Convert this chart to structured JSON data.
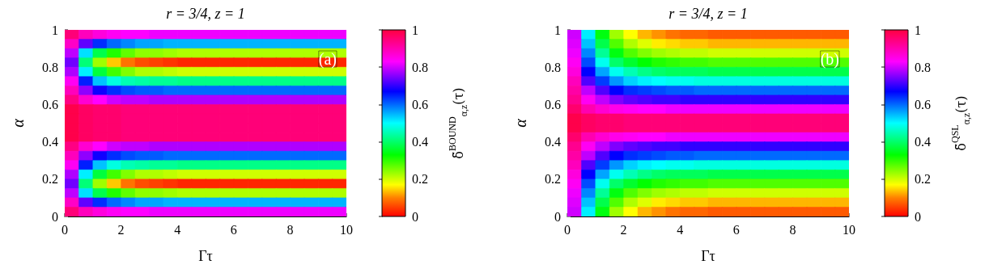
{
  "chart_data": [
    {
      "type": "heatmap",
      "title": "r = 3/4, z = 1",
      "xlabel": "Γτ",
      "ylabel": "α",
      "clabel": "δ̃$^{BOUND}$$_{α,z}$(τ)",
      "annotations": [
        "(a)"
      ],
      "x": [
        0.25,
        0.75,
        1.25,
        1.75,
        2.25,
        2.75,
        3.25,
        3.75,
        4.25,
        4.75,
        5.25,
        5.75,
        6.25,
        6.75,
        7.25,
        7.75,
        8.25,
        8.75,
        9.25,
        9.75
      ],
      "xlim": [
        0,
        10
      ],
      "xticks": [
        0,
        2,
        4,
        6,
        8,
        10
      ],
      "ylim": [
        0,
        1
      ],
      "yticks": [
        0,
        0.2,
        0.4,
        0.6,
        0.8,
        1
      ],
      "clim": [
        0,
        1
      ],
      "cticks": [
        0,
        0.2,
        0.4,
        0.6,
        0.8,
        1
      ],
      "cells": [
        [
          0.95,
          0.89,
          0.86,
          0.84,
          0.83,
          0.83,
          0.82,
          0.82,
          0.82,
          0.82,
          0.82,
          0.82,
          0.82,
          0.82,
          0.82,
          0.82,
          0.82,
          0.82,
          0.82,
          0.82
        ],
        [
          0.88,
          0.73,
          0.64,
          0.6,
          0.58,
          0.56,
          0.56,
          0.55,
          0.55,
          0.55,
          0.55,
          0.55,
          0.55,
          0.55,
          0.55,
          0.55,
          0.55,
          0.55,
          0.55,
          0.55
        ],
        [
          0.79,
          0.52,
          0.38,
          0.31,
          0.27,
          0.24,
          0.24,
          0.23,
          0.22,
          0.22,
          0.22,
          0.22,
          0.22,
          0.22,
          0.22,
          0.22,
          0.22,
          0.22,
          0.22,
          0.22
        ],
        [
          0.74,
          0.41,
          0.23,
          0.14,
          0.09,
          0.06,
          0.05,
          0.04,
          0.03,
          0.03,
          0.03,
          0.03,
          0.03,
          0.03,
          0.03,
          0.03,
          0.03,
          0.03,
          0.03,
          0.03
        ],
        [
          0.78,
          0.51,
          0.37,
          0.29,
          0.25,
          0.22,
          0.22,
          0.21,
          0.2,
          0.2,
          0.2,
          0.2,
          0.2,
          0.2,
          0.2,
          0.2,
          0.2,
          0.2,
          0.2,
          0.2
        ],
        [
          0.84,
          0.65,
          0.54,
          0.48,
          0.45,
          0.44,
          0.43,
          0.43,
          0.42,
          0.42,
          0.42,
          0.42,
          0.42,
          0.42,
          0.42,
          0.42,
          0.42,
          0.42,
          0.42,
          0.42
        ],
        [
          0.89,
          0.76,
          0.68,
          0.64,
          0.62,
          0.61,
          0.61,
          0.6,
          0.6,
          0.6,
          0.6,
          0.6,
          0.6,
          0.6,
          0.6,
          0.6,
          0.6,
          0.6,
          0.6,
          0.6
        ],
        [
          0.94,
          0.87,
          0.83,
          0.8,
          0.79,
          0.79,
          0.78,
          0.78,
          0.78,
          0.78,
          0.78,
          0.78,
          0.78,
          0.78,
          0.78,
          0.78,
          0.78,
          0.78,
          0.78,
          0.78
        ],
        [
          0.99,
          0.97,
          0.96,
          0.96,
          0.95,
          0.95,
          0.95,
          0.95,
          0.95,
          0.95,
          0.95,
          0.95,
          0.95,
          0.95,
          0.95,
          0.95,
          0.95,
          0.95,
          0.95,
          0.95
        ],
        [
          0.99,
          0.97,
          0.96,
          0.96,
          0.95,
          0.95,
          0.95,
          0.95,
          0.95,
          0.95,
          0.95,
          0.95,
          0.95,
          0.95,
          0.95,
          0.95,
          0.95,
          0.95,
          0.95,
          0.95
        ],
        [
          0.99,
          0.97,
          0.96,
          0.96,
          0.95,
          0.95,
          0.95,
          0.95,
          0.95,
          0.95,
          0.95,
          0.95,
          0.95,
          0.95,
          0.95,
          0.95,
          0.95,
          0.95,
          0.95,
          0.95
        ],
        [
          0.99,
          0.97,
          0.96,
          0.96,
          0.95,
          0.95,
          0.95,
          0.95,
          0.95,
          0.95,
          0.95,
          0.95,
          0.95,
          0.95,
          0.95,
          0.95,
          0.95,
          0.95,
          0.95,
          0.95
        ],
        [
          0.94,
          0.87,
          0.83,
          0.8,
          0.79,
          0.79,
          0.78,
          0.78,
          0.78,
          0.78,
          0.78,
          0.78,
          0.78,
          0.78,
          0.78,
          0.78,
          0.78,
          0.78,
          0.78,
          0.78
        ],
        [
          0.89,
          0.76,
          0.68,
          0.64,
          0.62,
          0.61,
          0.61,
          0.6,
          0.6,
          0.6,
          0.6,
          0.6,
          0.6,
          0.6,
          0.6,
          0.6,
          0.6,
          0.6,
          0.6,
          0.6
        ],
        [
          0.84,
          0.65,
          0.54,
          0.48,
          0.45,
          0.44,
          0.43,
          0.43,
          0.42,
          0.42,
          0.42,
          0.42,
          0.42,
          0.42,
          0.42,
          0.42,
          0.42,
          0.42,
          0.42,
          0.42
        ],
        [
          0.78,
          0.51,
          0.37,
          0.29,
          0.25,
          0.22,
          0.22,
          0.21,
          0.2,
          0.2,
          0.2,
          0.2,
          0.2,
          0.2,
          0.2,
          0.2,
          0.2,
          0.2,
          0.2,
          0.2
        ],
        [
          0.74,
          0.41,
          0.23,
          0.14,
          0.09,
          0.06,
          0.05,
          0.04,
          0.03,
          0.03,
          0.03,
          0.03,
          0.03,
          0.03,
          0.03,
          0.03,
          0.03,
          0.03,
          0.03,
          0.03
        ],
        [
          0.79,
          0.52,
          0.38,
          0.31,
          0.27,
          0.24,
          0.24,
          0.23,
          0.22,
          0.22,
          0.22,
          0.22,
          0.22,
          0.22,
          0.22,
          0.22,
          0.22,
          0.22,
          0.22,
          0.22
        ],
        [
          0.88,
          0.73,
          0.64,
          0.6,
          0.58,
          0.56,
          0.56,
          0.55,
          0.55,
          0.55,
          0.55,
          0.55,
          0.55,
          0.55,
          0.55,
          0.55,
          0.55,
          0.55,
          0.55,
          0.55
        ],
        [
          0.95,
          0.89,
          0.86,
          0.84,
          0.83,
          0.83,
          0.82,
          0.82,
          0.82,
          0.82,
          0.82,
          0.82,
          0.82,
          0.82,
          0.82,
          0.82,
          0.82,
          0.82,
          0.82,
          0.82
        ]
      ]
    },
    {
      "type": "heatmap",
      "title": "r = 3/4, z = 1",
      "xlabel": "Γτ",
      "ylabel": "α",
      "clabel": "δ̃$^{QSL}$$_{α,z}$(τ)",
      "annotations": [
        "(b)"
      ],
      "x": [
        0.25,
        0.75,
        1.25,
        1.75,
        2.25,
        2.75,
        3.25,
        3.75,
        4.25,
        4.75,
        5.25,
        5.75,
        6.25,
        6.75,
        7.25,
        7.75,
        8.25,
        8.75,
        9.25,
        9.75
      ],
      "xlim": [
        0,
        10
      ],
      "xticks": [
        0,
        2,
        4,
        6,
        8,
        10
      ],
      "ylim": [
        0,
        1
      ],
      "yticks": [
        0,
        0.2,
        0.4,
        0.6,
        0.8,
        1
      ],
      "clim": [
        0,
        1
      ],
      "cticks": [
        0,
        0.2,
        0.4,
        0.6,
        0.8,
        1
      ],
      "cells": [
        [
          0.8,
          0.51,
          0.34,
          0.23,
          0.17,
          0.13,
          0.11,
          0.09,
          0.08,
          0.08,
          0.07,
          0.07,
          0.07,
          0.07,
          0.07,
          0.07,
          0.07,
          0.07,
          0.07,
          0.07
        ],
        [
          0.81,
          0.54,
          0.38,
          0.28,
          0.22,
          0.19,
          0.16,
          0.15,
          0.14,
          0.14,
          0.13,
          0.13,
          0.13,
          0.13,
          0.13,
          0.13,
          0.13,
          0.13,
          0.13,
          0.13
        ],
        [
          0.82,
          0.58,
          0.43,
          0.34,
          0.28,
          0.25,
          0.23,
          0.22,
          0.21,
          0.21,
          0.2,
          0.2,
          0.2,
          0.2,
          0.2,
          0.2,
          0.2,
          0.2,
          0.2,
          0.2
        ],
        [
          0.84,
          0.62,
          0.49,
          0.4,
          0.36,
          0.33,
          0.31,
          0.3,
          0.29,
          0.29,
          0.28,
          0.28,
          0.28,
          0.28,
          0.28,
          0.28,
          0.28,
          0.28,
          0.28,
          0.28
        ],
        [
          0.86,
          0.67,
          0.56,
          0.49,
          0.45,
          0.42,
          0.4,
          0.39,
          0.39,
          0.39,
          0.38,
          0.38,
          0.38,
          0.38,
          0.38,
          0.38,
          0.38,
          0.38,
          0.38,
          0.38
        ],
        [
          0.89,
          0.72,
          0.63,
          0.57,
          0.53,
          0.51,
          0.5,
          0.49,
          0.49,
          0.48,
          0.48,
          0.48,
          0.48,
          0.48,
          0.48,
          0.48,
          0.48,
          0.48,
          0.48,
          0.48
        ],
        [
          0.91,
          0.79,
          0.72,
          0.67,
          0.64,
          0.63,
          0.62,
          0.61,
          0.61,
          0.6,
          0.6,
          0.6,
          0.6,
          0.6,
          0.6,
          0.6,
          0.6,
          0.6,
          0.6,
          0.6
        ],
        [
          0.93,
          0.84,
          0.79,
          0.75,
          0.73,
          0.72,
          0.71,
          0.71,
          0.7,
          0.7,
          0.7,
          0.7,
          0.7,
          0.7,
          0.7,
          0.7,
          0.7,
          0.7,
          0.7,
          0.7
        ],
        [
          0.96,
          0.9,
          0.87,
          0.85,
          0.84,
          0.83,
          0.83,
          0.82,
          0.82,
          0.82,
          0.82,
          0.82,
          0.82,
          0.82,
          0.82,
          0.82,
          0.82,
          0.82,
          0.82,
          0.82
        ],
        [
          0.99,
          0.97,
          0.96,
          0.96,
          0.95,
          0.95,
          0.95,
          0.95,
          0.95,
          0.95,
          0.95,
          0.95,
          0.95,
          0.95,
          0.95,
          0.95,
          0.95,
          0.95,
          0.95,
          0.95
        ],
        [
          0.99,
          0.97,
          0.96,
          0.96,
          0.95,
          0.95,
          0.95,
          0.95,
          0.95,
          0.95,
          0.95,
          0.95,
          0.95,
          0.95,
          0.95,
          0.95,
          0.95,
          0.95,
          0.95,
          0.95
        ],
        [
          0.96,
          0.9,
          0.87,
          0.85,
          0.84,
          0.83,
          0.83,
          0.82,
          0.82,
          0.82,
          0.82,
          0.82,
          0.82,
          0.82,
          0.82,
          0.82,
          0.82,
          0.82,
          0.82,
          0.82
        ],
        [
          0.93,
          0.84,
          0.79,
          0.75,
          0.73,
          0.72,
          0.71,
          0.71,
          0.7,
          0.7,
          0.7,
          0.7,
          0.7,
          0.7,
          0.7,
          0.7,
          0.7,
          0.7,
          0.7,
          0.7
        ],
        [
          0.91,
          0.79,
          0.72,
          0.67,
          0.64,
          0.63,
          0.62,
          0.61,
          0.61,
          0.6,
          0.6,
          0.6,
          0.6,
          0.6,
          0.6,
          0.6,
          0.6,
          0.6,
          0.6,
          0.6
        ],
        [
          0.89,
          0.72,
          0.63,
          0.57,
          0.53,
          0.51,
          0.5,
          0.49,
          0.49,
          0.48,
          0.48,
          0.48,
          0.48,
          0.48,
          0.48,
          0.48,
          0.48,
          0.48,
          0.48,
          0.48
        ],
        [
          0.86,
          0.67,
          0.56,
          0.49,
          0.45,
          0.42,
          0.4,
          0.39,
          0.39,
          0.39,
          0.38,
          0.38,
          0.38,
          0.38,
          0.38,
          0.38,
          0.38,
          0.38,
          0.38,
          0.38
        ],
        [
          0.84,
          0.62,
          0.49,
          0.4,
          0.36,
          0.33,
          0.31,
          0.3,
          0.29,
          0.29,
          0.28,
          0.28,
          0.28,
          0.28,
          0.28,
          0.28,
          0.28,
          0.28,
          0.28,
          0.28
        ],
        [
          0.82,
          0.58,
          0.43,
          0.34,
          0.28,
          0.25,
          0.23,
          0.22,
          0.21,
          0.21,
          0.2,
          0.2,
          0.2,
          0.2,
          0.2,
          0.2,
          0.2,
          0.2,
          0.2,
          0.2
        ],
        [
          0.81,
          0.54,
          0.38,
          0.28,
          0.22,
          0.19,
          0.16,
          0.15,
          0.14,
          0.14,
          0.13,
          0.13,
          0.13,
          0.13,
          0.13,
          0.13,
          0.13,
          0.13,
          0.13,
          0.13
        ],
        [
          0.8,
          0.51,
          0.34,
          0.23,
          0.17,
          0.13,
          0.11,
          0.09,
          0.08,
          0.08,
          0.07,
          0.07,
          0.07,
          0.07,
          0.07,
          0.07,
          0.07,
          0.07,
          0.07,
          0.07
        ]
      ]
    }
  ]
}
